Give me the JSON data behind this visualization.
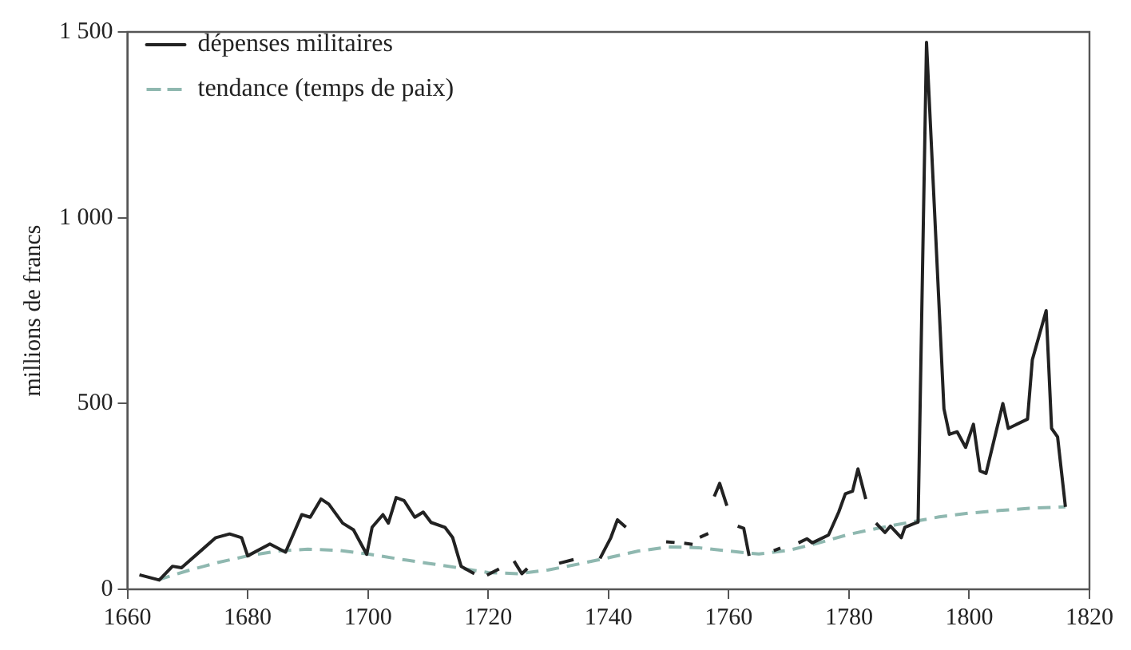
{
  "chart_data": {
    "type": "line",
    "ylabel": "millions de francs",
    "xlim": [
      1660,
      1820
    ],
    "xticks": [
      1660,
      1680,
      1700,
      1720,
      1740,
      1760,
      1780,
      1800,
      1820
    ],
    "ylim": [
      0,
      1500
    ],
    "yticks": [
      0,
      {
        "value": 500,
        "label": "500"
      },
      {
        "value": 1000,
        "label": "1 000"
      },
      {
        "value": 1500,
        "label": "1 500"
      }
    ],
    "grid": false,
    "legend": "top left",
    "series": [
      {
        "name": "dépenses militaires",
        "color": "#222222",
        "line_style": "solid",
        "x": [
          1662,
          1665.3,
          1667.5,
          1669,
          1674.7,
          1677,
          1679,
          1680,
          1683.7,
          1686.3,
          1689,
          1690.4,
          1692.2,
          1693.5,
          1695.8,
          1697.6,
          1699.8,
          1700.7,
          1702.5,
          1703.4,
          1704.7,
          1706,
          1707.8,
          1709.2,
          1710.5,
          1712.8,
          1714.1,
          1715.5,
          1717.7,
          1719,
          1719.8,
          1721.8,
          1722.4,
          1724.3,
          1725.6,
          1726.5,
          1730,
          1731.8,
          1734.2,
          1735,
          1738.6,
          1740.4,
          1741.5,
          1742.9,
          1746,
          1749.6,
          1751,
          1752,
          1752.6,
          1754,
          1754.6,
          1755.2,
          1756.6,
          1757,
          1757.6,
          1758.5,
          1759.7,
          1760.5,
          1761.5,
          1762.5,
          1763.4,
          1765,
          1767.5,
          1768.6,
          1770,
          1771.6,
          1773,
          1773.9,
          1776.6,
          1778.3,
          1779.4,
          1780.6,
          1781.5,
          1782.8,
          1783.3,
          1784.5,
          1786,
          1786.9,
          1788.7,
          1789.3,
          1791,
          1791.5,
          1792.9,
          1795.8,
          1796.7,
          1798,
          1799.4,
          1800.7,
          1801.8,
          1802.8,
          1805.6,
          1806.5,
          1809.7,
          1810.5,
          1812.8,
          1813.7,
          1814.7,
          1816
        ],
        "values": [
          39,
          25,
          62,
          58,
          139,
          149,
          139,
          90,
          122,
          100,
          201,
          194,
          243,
          229,
          178,
          160,
          94,
          167,
          201,
          178,
          247,
          239,
          194,
          208,
          180,
          167,
          139,
          62,
          42,
          null,
          38,
          55,
          null,
          76,
          42,
          56,
          null,
          70,
          80,
          null,
          83,
          139,
          187,
          167,
          null,
          128,
          126,
          null,
          124,
          121,
          null,
          140,
          150,
          null,
          250,
          285,
          225,
          null,
          170,
          164,
          90,
          null,
          104,
          111,
          null,
          125,
          136,
          125,
          146,
          208,
          257,
          264,
          324,
          243,
          null,
          178,
          153,
          170,
          139,
          167,
          178,
          181,
          1472,
          486,
          417,
          424,
          382,
          444,
          319,
          312,
          500,
          433,
          458,
          618,
          750,
          433,
          410,
          222
        ]
      },
      {
        "name": "tendance (temps de paix)",
        "color": "#8fb8b0",
        "line_style": "dashed",
        "x": [
          1665,
          1670,
          1675,
          1680,
          1685,
          1690,
          1695,
          1700,
          1705,
          1710,
          1715,
          1720,
          1725,
          1730,
          1735,
          1740,
          1745,
          1750,
          1755,
          1760,
          1765,
          1770,
          1775,
          1780,
          1785,
          1790,
          1795,
          1800,
          1805,
          1810,
          1816
        ],
        "values": [
          25,
          50,
          72,
          90,
          103,
          108,
          105,
          95,
          82,
          70,
          58,
          45,
          42,
          52,
          68,
          85,
          103,
          114,
          112,
          103,
          95,
          105,
          125,
          148,
          165,
          180,
          195,
          205,
          212,
          218,
          222
        ]
      }
    ]
  }
}
